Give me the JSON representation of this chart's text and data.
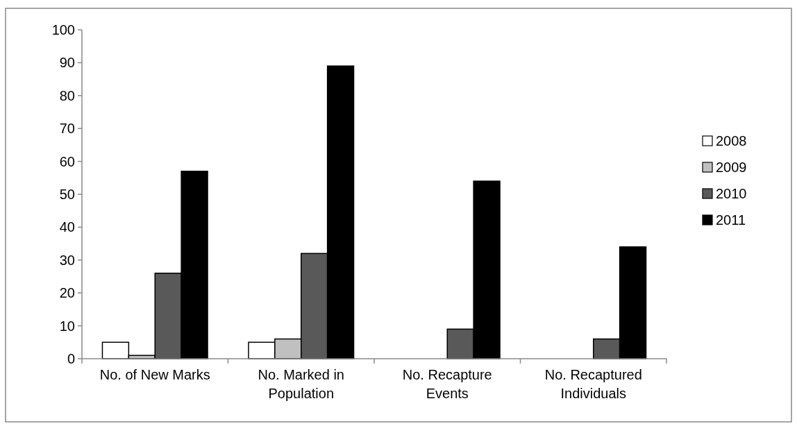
{
  "chart_data": {
    "type": "bar",
    "categories": [
      "No. of New Marks",
      "No. Marked in Population",
      "No. Recapture Events",
      "No. Recaptured Individuals"
    ],
    "series": [
      {
        "name": "2008",
        "color": "#ffffff",
        "values": [
          5,
          5,
          0,
          0
        ]
      },
      {
        "name": "2009",
        "color": "#c0c0c0",
        "values": [
          1,
          6,
          0,
          0
        ]
      },
      {
        "name": "2010",
        "color": "#595959",
        "values": [
          26,
          32,
          9,
          6
        ]
      },
      {
        "name": "2011",
        "color": "#000000",
        "values": [
          57,
          89,
          54,
          34
        ]
      }
    ],
    "ylim": [
      0,
      100
    ],
    "yticks": [
      0,
      10,
      20,
      30,
      40,
      50,
      60,
      70,
      80,
      90,
      100
    ],
    "grid": false,
    "legend": "right"
  }
}
